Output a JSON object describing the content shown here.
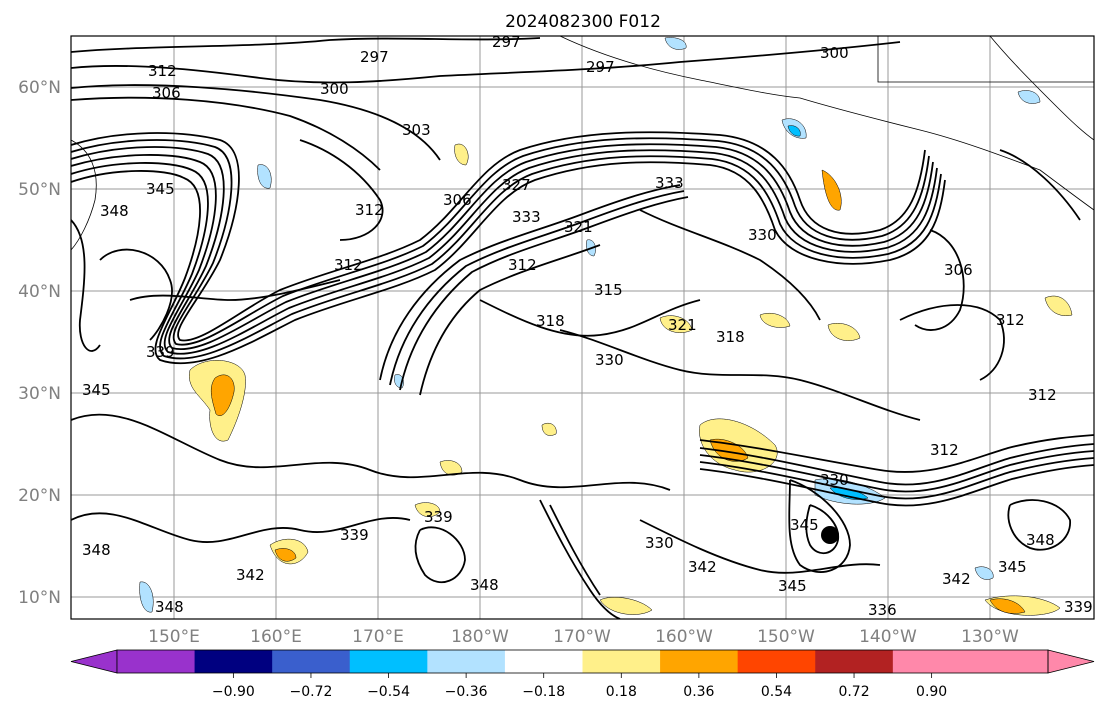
{
  "figure": {
    "title": "2024082300 F012"
  },
  "map": {
    "lat_labels": [
      "60°N",
      "50°N",
      "40°N",
      "30°N",
      "20°N",
      "10°N"
    ],
    "lon_labels": [
      "150°E",
      "160°E",
      "170°E",
      "180°W",
      "170°W",
      "160°W",
      "150°W",
      "140°W",
      "130°W"
    ],
    "contour_labels": [
      "297",
      "297",
      "297",
      "300",
      "300",
      "306",
      "312",
      "303",
      "312",
      "345",
      "348",
      "312",
      "306",
      "327",
      "333",
      "333",
      "321",
      "330",
      "312",
      "315",
      "318",
      "321",
      "318",
      "330",
      "306",
      "312",
      "312",
      "312",
      "330",
      "339",
      "345",
      "342",
      "348",
      "348",
      "339",
      "339",
      "348",
      "330",
      "342",
      "345",
      "345",
      "342",
      "345",
      "348",
      "339",
      "336"
    ],
    "filled_levels": [
      "-0.90",
      "-0.72",
      "-0.54",
      "-0.36",
      "-0.18",
      "0.18",
      "0.36",
      "0.54",
      "0.72",
      "0.90"
    ],
    "colors": {
      "contour": "#000000",
      "pos_light": "#fff08a",
      "pos_mid": "#ffa500",
      "neg_light": "#b2e2ff",
      "neg_mid": "#00bfff"
    }
  },
  "colorbar": {
    "tick_labels": [
      "−0.90",
      "−0.72",
      "−0.54",
      "−0.36",
      "−0.18",
      "0.18",
      "0.36",
      "0.54",
      "0.72",
      "0.90"
    ],
    "colors": [
      "#9932cc",
      "#000080",
      "#3a5fcd",
      "#00bfff",
      "#b2e2ff",
      "#ffffff",
      "#fff08a",
      "#ffa500",
      "#ff4500",
      "#b22222",
      "#ff88aa",
      "#ff88aa"
    ]
  }
}
